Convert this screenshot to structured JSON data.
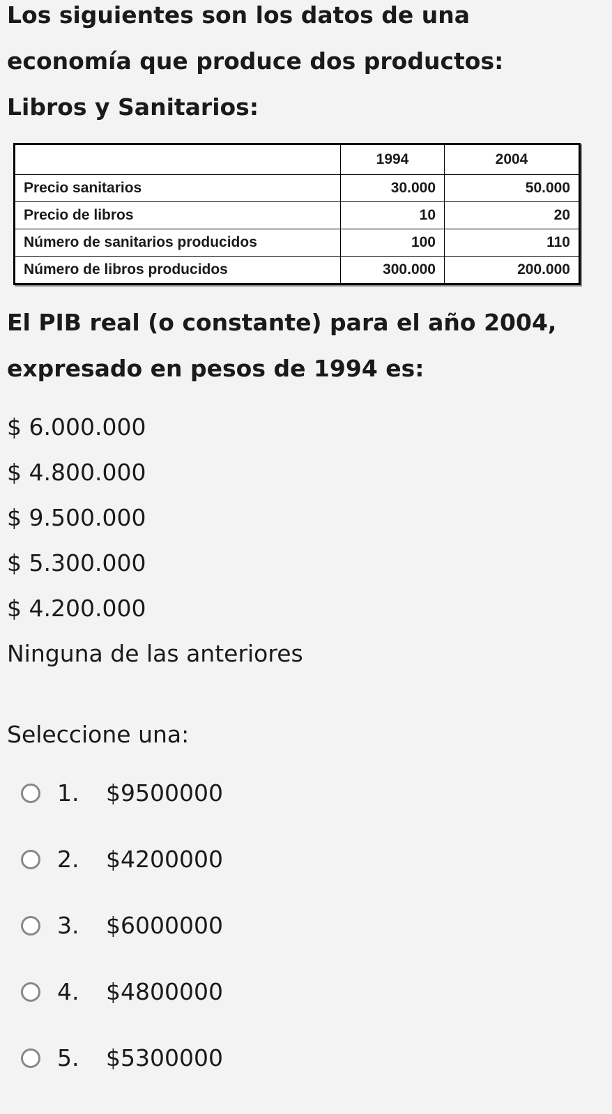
{
  "question": {
    "intro_lines": [
      "Los siguientes son los datos de una",
      "economía que produce dos productos:",
      "Libros y Sanitarios:"
    ],
    "table": {
      "headers": [
        "",
        "1994",
        "2004"
      ],
      "rows": [
        [
          "Precio sanitarios",
          "30.000",
          "50.000"
        ],
        [
          "Precio de libros",
          "10",
          "20"
        ],
        [
          "Número de sanitarios producidos",
          "100",
          "110"
        ],
        [
          "Número de libros producidos",
          "300.000",
          "200.000"
        ]
      ]
    },
    "prompt_lines": [
      "El PIB real (o constante) para el año 2004,",
      "expresado en pesos de 1994 es:"
    ],
    "listed_options": [
      "$ 6.000.000",
      "$ 4.800.000",
      "$ 9.500.000",
      "$ 5.300.000",
      "$ 4.200.000",
      "Ninguna de las anteriores"
    ]
  },
  "select_label": "Seleccione una:",
  "choices": [
    {
      "number": "1.",
      "label": "$9500000",
      "selected": false
    },
    {
      "number": "2.",
      "label": "$4200000",
      "selected": false
    },
    {
      "number": "3.",
      "label": "$6000000",
      "selected": false
    },
    {
      "number": "4.",
      "label": "$4800000",
      "selected": false
    },
    {
      "number": "5.",
      "label": "$5300000",
      "selected": false
    }
  ]
}
